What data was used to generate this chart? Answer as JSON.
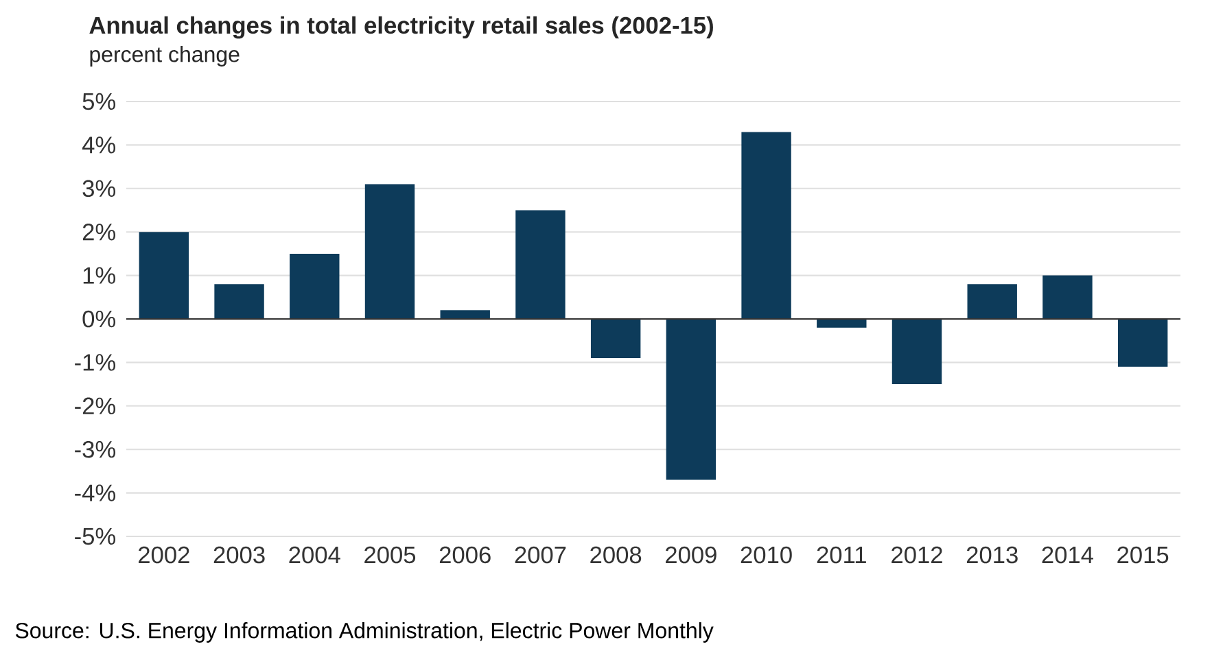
{
  "chart_data": {
    "type": "bar",
    "title": "Annual changes in total electricity retail sales (2002-15)",
    "subtitle": "percent change",
    "categories": [
      "2002",
      "2003",
      "2004",
      "2005",
      "2006",
      "2007",
      "2008",
      "2009",
      "2010",
      "2011",
      "2012",
      "2013",
      "2014",
      "2015"
    ],
    "values": [
      2.0,
      0.8,
      1.5,
      3.1,
      0.2,
      2.5,
      -0.9,
      -3.7,
      4.3,
      -0.2,
      -1.5,
      0.8,
      1.0,
      -1.1
    ],
    "color": "#0d3b5a",
    "ylim": [
      -5,
      5
    ],
    "yticks": [
      {
        "value": 5,
        "label": "5%"
      },
      {
        "value": 4,
        "label": "4%"
      },
      {
        "value": 3,
        "label": "3%"
      },
      {
        "value": 2,
        "label": "2%"
      },
      {
        "value": 1,
        "label": "1%"
      },
      {
        "value": 0,
        "label": "0%"
      },
      {
        "value": -1,
        "label": "-1%"
      },
      {
        "value": -2,
        "label": "-2%"
      },
      {
        "value": -3,
        "label": "-3%"
      },
      {
        "value": -4,
        "label": "-4%"
      },
      {
        "value": -5,
        "label": "-5%"
      }
    ],
    "grid": "y",
    "annotations": [
      "Source: U.S. Energy Information Administration, Electric Power Monthly"
    ]
  }
}
